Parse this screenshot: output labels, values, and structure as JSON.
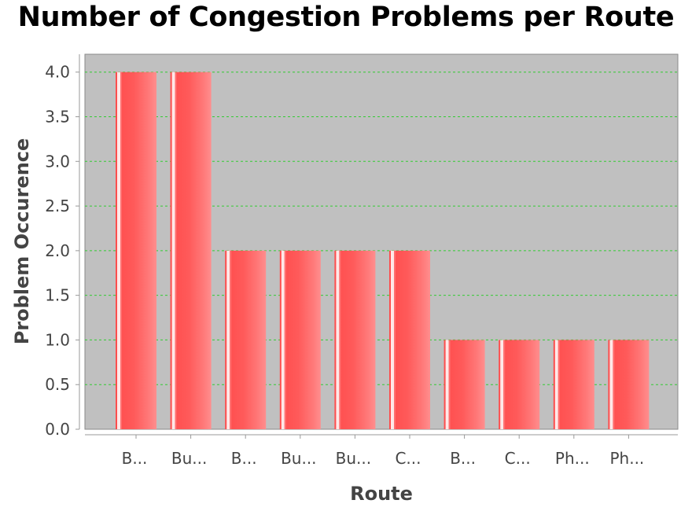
{
  "chart_data": {
    "type": "bar",
    "title": "Number of Congestion Problems per Route",
    "xlabel": "Route",
    "ylabel": "Problem Occurence",
    "categories": [
      "B...",
      "Bu...",
      "B...",
      "Bu...",
      "Bu...",
      "C...",
      "B...",
      "C...",
      "Ph...",
      "Ph..."
    ],
    "values": [
      4,
      4,
      2,
      2,
      2,
      2,
      1,
      1,
      1,
      1
    ],
    "ylim": [
      0,
      4.2
    ],
    "yticks": [
      "0.0",
      "0.5",
      "1.0",
      "1.5",
      "2.0",
      "2.5",
      "3.0",
      "3.5",
      "4.0"
    ],
    "grid": true,
    "legend": "none"
  },
  "colors": {
    "plot_background": "#c0c0c0",
    "bar": "#ff5555",
    "bar_highlight": "#ff8a8a",
    "gridline": "#33cc33"
  }
}
